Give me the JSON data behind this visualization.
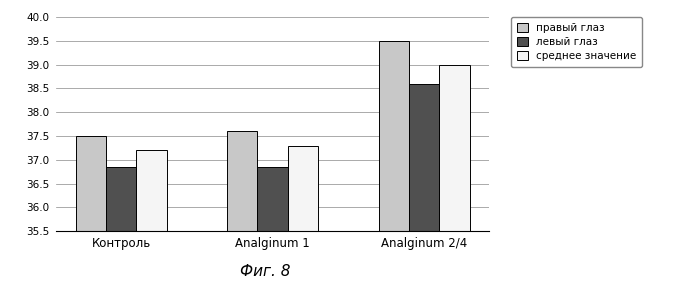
{
  "categories": [
    "Контроль",
    "Analginum 1",
    "Analginum 2/4"
  ],
  "series": {
    "правый глаз": [
      37.5,
      37.6,
      39.5
    ],
    "левый глаз": [
      36.85,
      36.85,
      38.6
    ],
    "среднее значение": [
      37.2,
      37.3,
      39.0
    ]
  },
  "colors": {
    "правый глаз": "#c8c8c8",
    "левый глаз": "#505050",
    "среднее значение": "#f5f5f5"
  },
  "ylim": [
    35.5,
    40.0
  ],
  "ybaseline": 35.5,
  "yticks": [
    35.5,
    36.0,
    36.5,
    37.0,
    37.5,
    38.0,
    38.5,
    39.0,
    39.5,
    40.0
  ],
  "title": "Фиг. 8",
  "background_color": "#ffffff",
  "bar_edgecolor": "#000000",
  "bar_width": 0.2,
  "legend_labels": [
    "правый глаз",
    "левый глаз",
    "среднее значение"
  ]
}
